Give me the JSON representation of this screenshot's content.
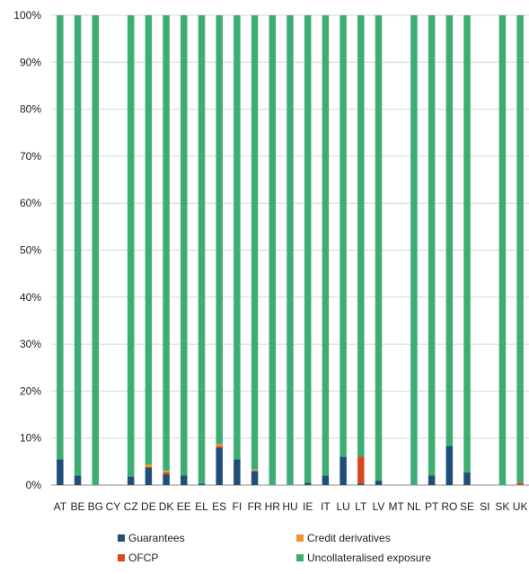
{
  "chart_data": {
    "type": "bar",
    "stacked": true,
    "percent_axis": true,
    "categories": [
      "AT",
      "BE",
      "BG",
      "CY",
      "CZ",
      "DE",
      "DK",
      "EE",
      "EL",
      "ES",
      "FI",
      "FR",
      "HR",
      "HU",
      "IE",
      "IT",
      "LU",
      "LT",
      "LV",
      "MT",
      "NL",
      "PT",
      "RO",
      "SE",
      "SI",
      "SK",
      "UK"
    ],
    "series": [
      {
        "name": "Guarantees",
        "color": "#1f4e79",
        "values": [
          5.5,
          2.0,
          0.0,
          null,
          1.8,
          3.8,
          2.2,
          2.0,
          0.3,
          8.0,
          5.5,
          3.0,
          0.0,
          0.0,
          0.5,
          2.0,
          6.0,
          0.3,
          1.0,
          null,
          0.0,
          2.0,
          8.3,
          2.7,
          null,
          0.0,
          0.0
        ]
      },
      {
        "name": "OFCP",
        "color": "#d9481d",
        "values": [
          0.0,
          0.0,
          0.0,
          null,
          0.0,
          0.0,
          0.5,
          0.0,
          0.0,
          0.3,
          0.0,
          0.0,
          0.0,
          0.0,
          0.0,
          0.0,
          0.0,
          5.8,
          0.0,
          null,
          0.0,
          0.0,
          0.0,
          0.0,
          null,
          0.0,
          0.5
        ]
      },
      {
        "name": "Credit derivatives",
        "color": "#f0962e",
        "values": [
          0.0,
          0.0,
          0.0,
          null,
          0.0,
          0.6,
          0.3,
          0.0,
          0.0,
          0.5,
          0.0,
          0.3,
          0.0,
          0.0,
          0.0,
          0.0,
          0.0,
          0.0,
          0.0,
          null,
          0.0,
          0.0,
          0.0,
          0.0,
          null,
          0.0,
          0.0
        ]
      },
      {
        "name": "Uncollateralised exposure",
        "color": "#3cae73",
        "values": [
          94.5,
          98.0,
          100.0,
          null,
          98.2,
          95.6,
          97.0,
          98.0,
          99.7,
          91.2,
          94.5,
          96.7,
          100.0,
          100.0,
          99.5,
          98.0,
          94.0,
          93.9,
          99.0,
          null,
          100.0,
          98.0,
          91.7,
          97.3,
          null,
          100.0,
          99.5
        ]
      }
    ],
    "yticks": [
      "0%",
      "10%",
      "20%",
      "30%",
      "40%",
      "50%",
      "60%",
      "70%",
      "80%",
      "90%",
      "100%"
    ],
    "ylim": [
      0,
      100
    ],
    "grid": true,
    "legend_position": "bottom",
    "title": "",
    "xlabel": "",
    "ylabel": ""
  }
}
